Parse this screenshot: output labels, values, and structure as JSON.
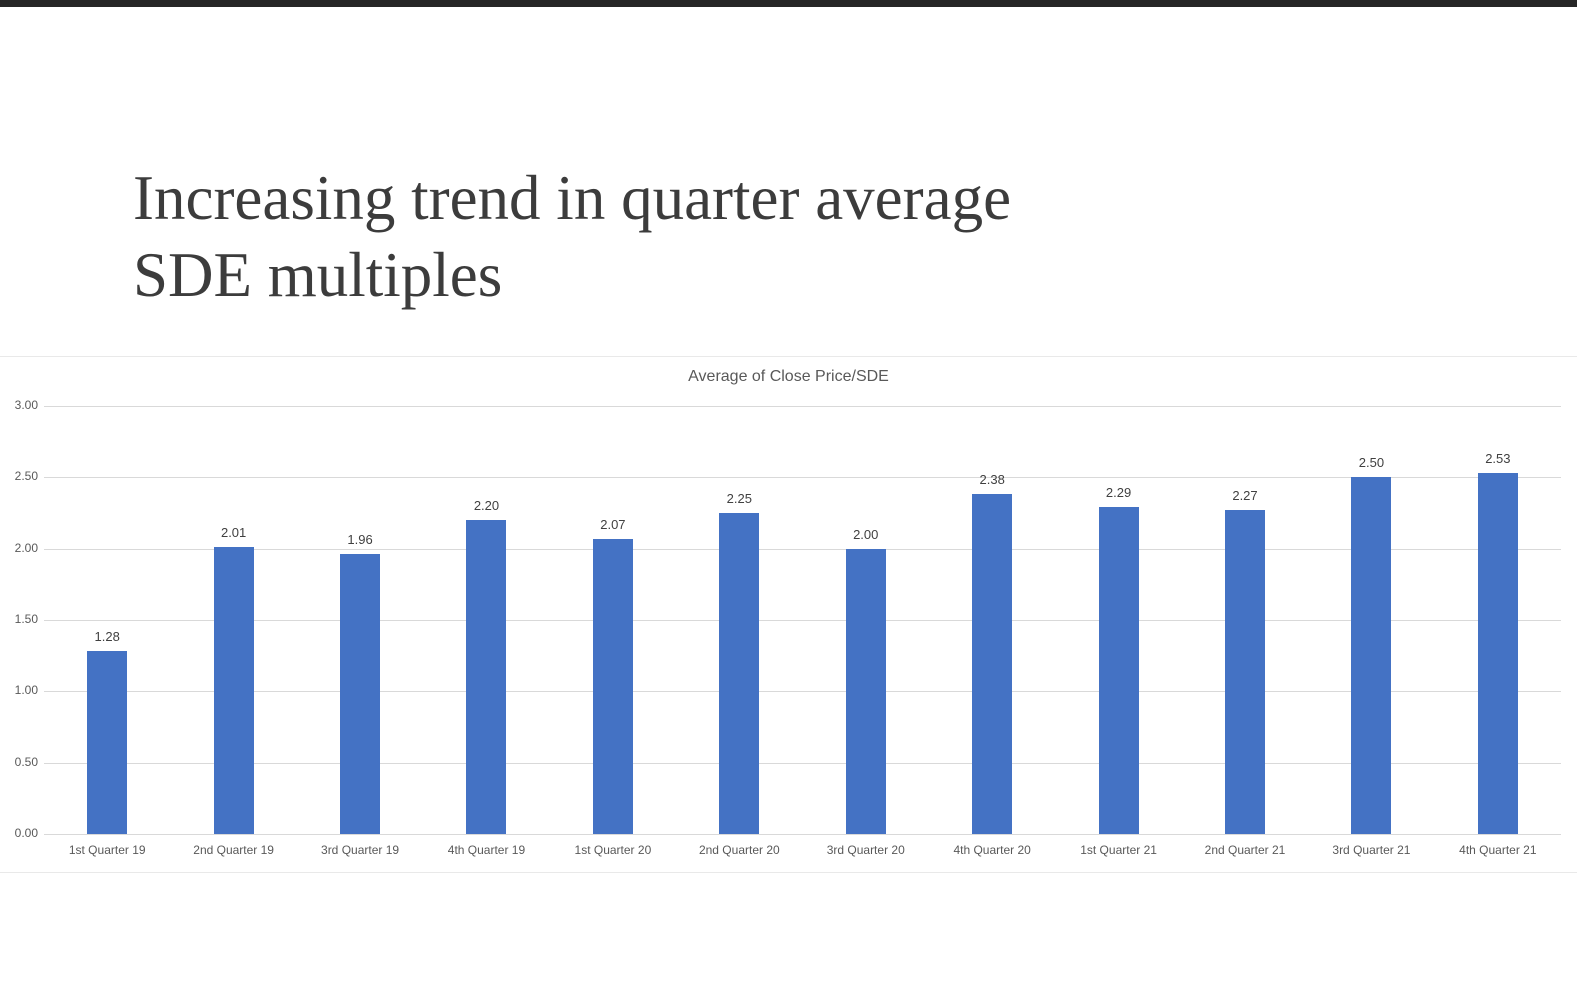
{
  "top_bar": {
    "color": "#262626"
  },
  "slide": {
    "title_line1": "Increasing trend in quarter average",
    "title_line2": "SDE multiples",
    "title_color": "#3c3c3c"
  },
  "chart_data": {
    "type": "bar",
    "title": "Average of Close Price/SDE",
    "categories": [
      "1st Quarter 19",
      "2nd Quarter 19",
      "3rd Quarter 19",
      "4th Quarter 19",
      "1st Quarter 20",
      "2nd Quarter 20",
      "3rd Quarter 20",
      "4th Quarter 20",
      "1st Quarter 21",
      "2nd Quarter 21",
      "3rd Quarter 21",
      "4th Quarter 21"
    ],
    "values": [
      1.28,
      2.01,
      1.96,
      2.2,
      2.07,
      2.25,
      2.0,
      2.38,
      2.29,
      2.27,
      2.5,
      2.53
    ],
    "value_labels": [
      "1.28",
      "2.01",
      "1.96",
      "2.20",
      "2.07",
      "2.25",
      "2.00",
      "2.38",
      "2.29",
      "2.27",
      "2.50",
      "2.53"
    ],
    "y_ticks": [
      "3.00",
      "2.50",
      "2.00",
      "1.50",
      "1.00",
      "0.50",
      "0.00"
    ],
    "ylim": [
      0,
      3
    ],
    "xlabel": "",
    "ylabel": "",
    "grid": true,
    "legend_position": "none",
    "bar_color": "#4472c4",
    "gridline_color": "#d9d9d9",
    "axis_label_color": "#595959",
    "data_label_color": "#404040",
    "title_color": "#595959"
  }
}
